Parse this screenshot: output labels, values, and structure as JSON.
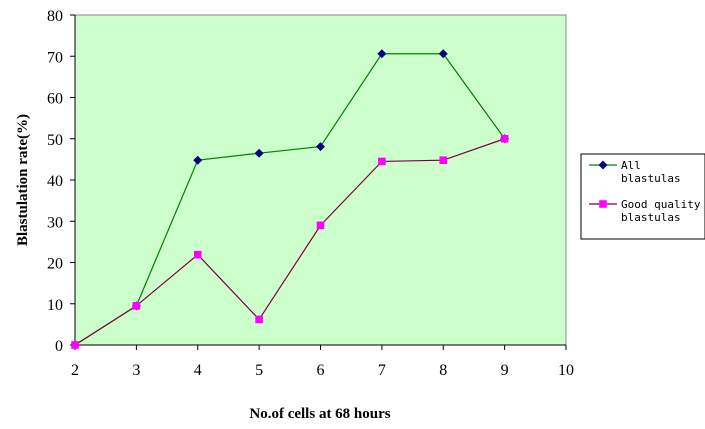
{
  "chart_data": {
    "type": "line",
    "title": "",
    "xlabel": "No.of cells at 68 hours",
    "ylabel": "Blastulation rate(%)",
    "xlim": [
      2,
      10
    ],
    "ylim": [
      0,
      80
    ],
    "x_ticks": [
      2,
      3,
      4,
      5,
      6,
      7,
      8,
      9,
      10
    ],
    "y_ticks": [
      0,
      10,
      20,
      30,
      40,
      50,
      60,
      70,
      80
    ],
    "grid": false,
    "plot_background": "#ccffcc",
    "legend_position": "right",
    "series": [
      {
        "name": "All blastulas",
        "legend_lines": [
          "All",
          "blastulas"
        ],
        "color": "#008000",
        "marker": "diamond",
        "marker_color": "#000080",
        "x": [
          2,
          3,
          4,
          5,
          6,
          7,
          8,
          9
        ],
        "values": [
          0,
          9.5,
          44.8,
          46.5,
          48.1,
          70.6,
          70.6,
          50
        ]
      },
      {
        "name": "Good quality blastulas",
        "legend_lines": [
          "Good quality",
          "blastulas"
        ],
        "color": "#800040",
        "marker": "square",
        "marker_color": "#ff00ff",
        "x": [
          2,
          3,
          4,
          5,
          6,
          7,
          8,
          9
        ],
        "values": [
          0,
          9.5,
          21.9,
          6.2,
          29,
          44.5,
          44.8,
          50
        ]
      }
    ]
  }
}
